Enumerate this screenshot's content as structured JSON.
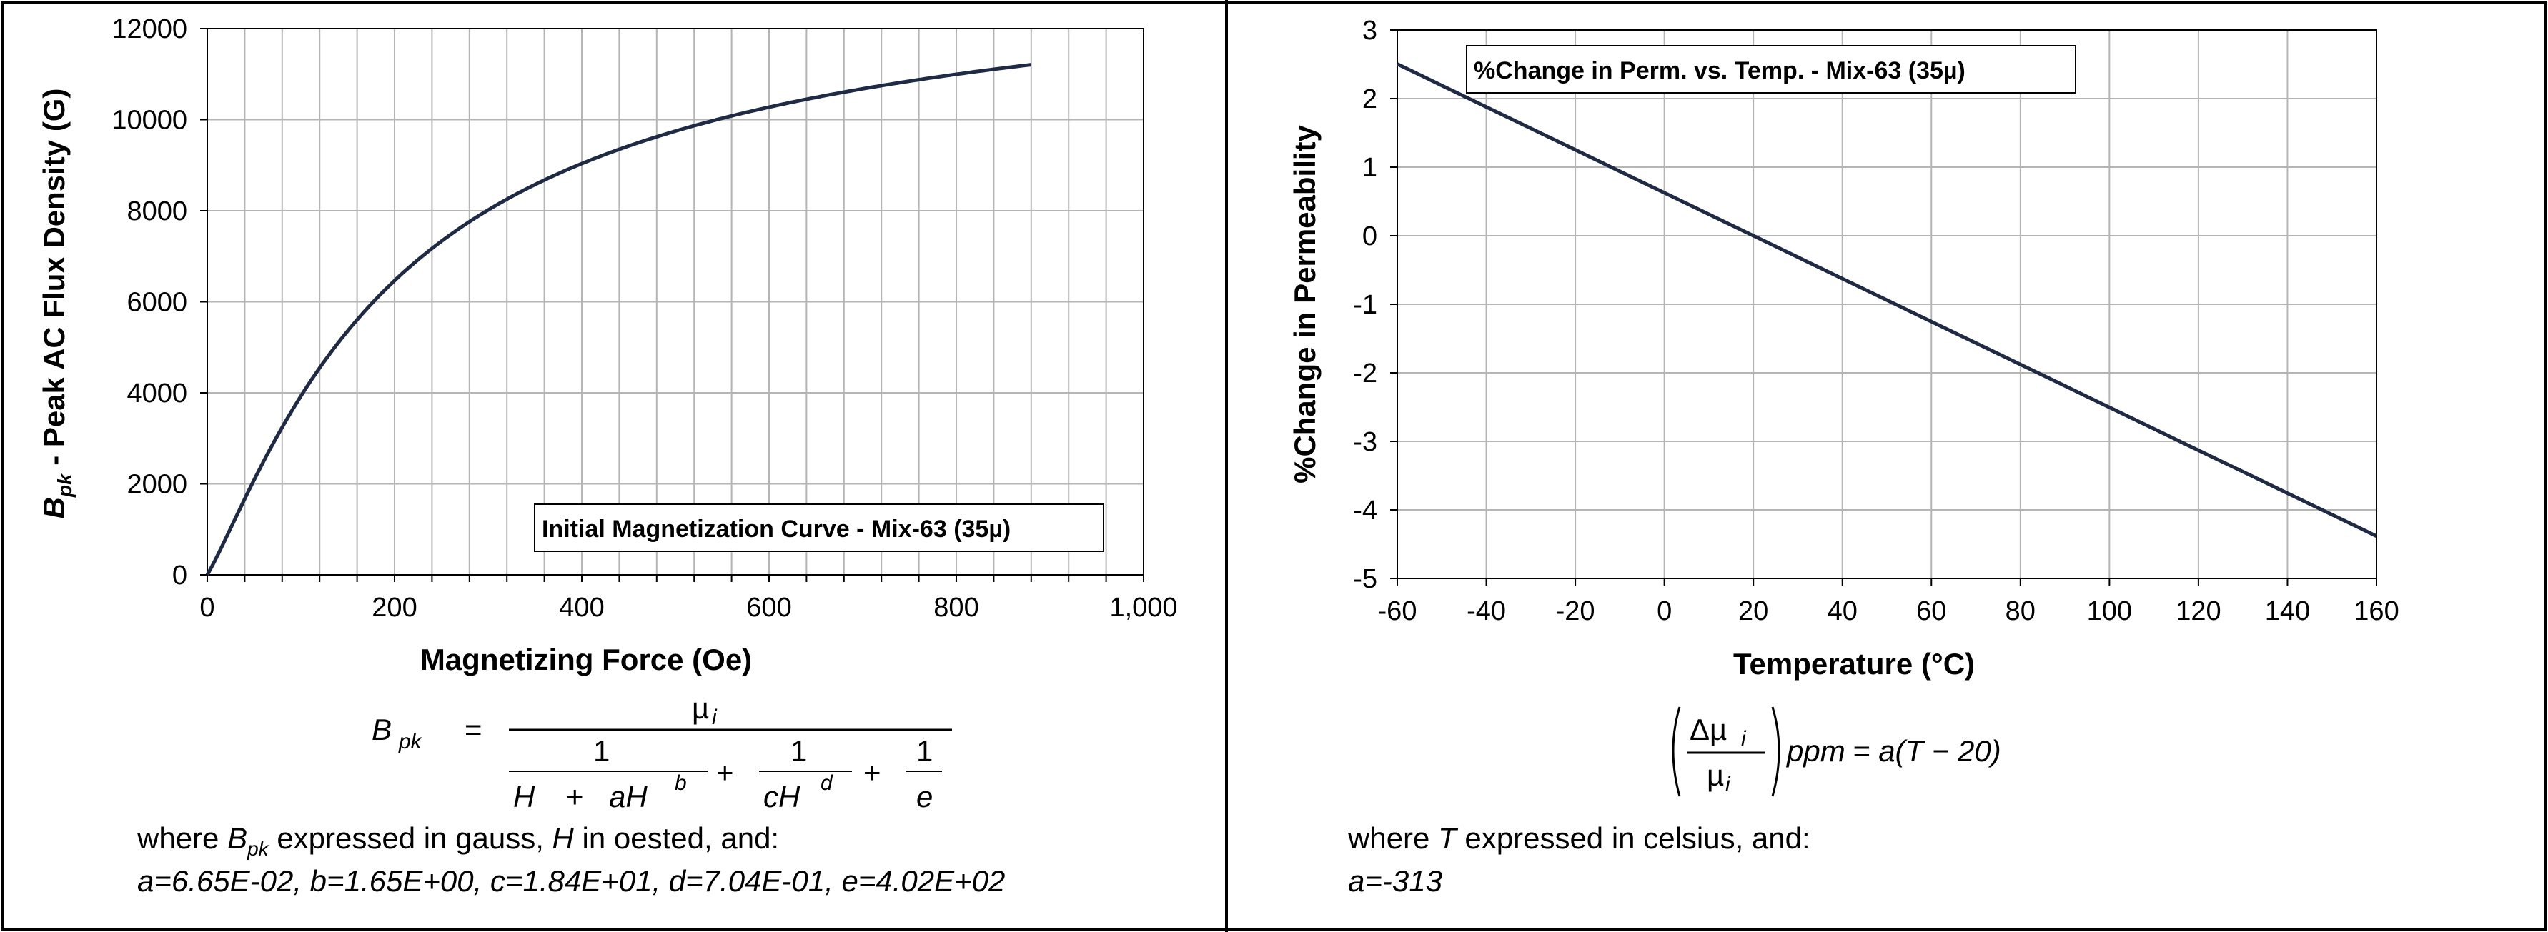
{
  "chart_data": [
    {
      "type": "line",
      "legend": "Initial Magnetization Curve - Mix-63  (35µ)",
      "legend_placement": "bottom-right",
      "xlabel": "Magnetizing Force (Oe)",
      "ylabel_main": "B",
      "ylabel_sub": "pk",
      "ylabel_rest": " - Peak AC Flux Density (G)",
      "xlim": [
        0,
        1000
      ],
      "ylim": [
        0,
        12000
      ],
      "x_ticks": [
        "0",
        "200",
        "400",
        "600",
        "800",
        "1,000"
      ],
      "y_ticks": [
        "0",
        "2000",
        "4000",
        "6000",
        "8000",
        "10000",
        "12000"
      ],
      "grid": true,
      "line_color": "#1f2a44",
      "formula": {
        "lhs": "B",
        "lhs_sub": "pk",
        "equals": "=",
        "numerator": "µ",
        "numerator_sub": "i",
        "one": "1",
        "term1_a": "H",
        "term1_plus": "+",
        "term1_b": "aH",
        "term1_exp": "b",
        "plus": "+",
        "term2": "cH",
        "term2_exp": "d",
        "term3": "e"
      },
      "note_prefix": "where ",
      "note_b": "B",
      "note_b_sub": "pk",
      "note_mid": " expressed in gauss, ",
      "note_h": "H",
      "note_rest": " in oested, and:",
      "params": "a=6.65E-02,  b=1.65E+00,  c=1.84E+01,  d=7.04E-01,  e=4.02E+02",
      "coefficients": {
        "a": 0.0665,
        "b": 1.65,
        "c": 18.4,
        "d": 0.704,
        "e": 402,
        "mu": 35,
        "h_max": 880
      }
    },
    {
      "type": "line",
      "legend": "%Change in Perm. vs. Temp. - Mix-63  (35µ)",
      "legend_placement": "top-left",
      "xlabel": "Temperature (°C)",
      "ylabel": "%Change in Permeability",
      "xlim": [
        -60,
        160
      ],
      "ylim": [
        -5,
        3
      ],
      "x_ticks": [
        "-60",
        "-40",
        "-20",
        "0",
        "20",
        "40",
        "60",
        "80",
        "100",
        "120",
        "140",
        "160"
      ],
      "y_ticks": [
        "-5",
        "-4",
        "-3",
        "-2",
        "-1",
        "0",
        "1",
        "2",
        "3"
      ],
      "grid": true,
      "line_color": "#1f2a44",
      "formula": {
        "delta": "Δµ",
        "delta_sub": "i",
        "mu": "µ",
        "mu_sub": "i",
        "ppm": "ppm",
        "rhs": "= a(T − 20)"
      },
      "note_prefix": "where ",
      "note_t": "T",
      "note_rest": " expressed in celsius, and:",
      "params": "a=-313",
      "coefficients": {
        "a": -313,
        "x_start": -60,
        "x_end": 160
      }
    }
  ]
}
